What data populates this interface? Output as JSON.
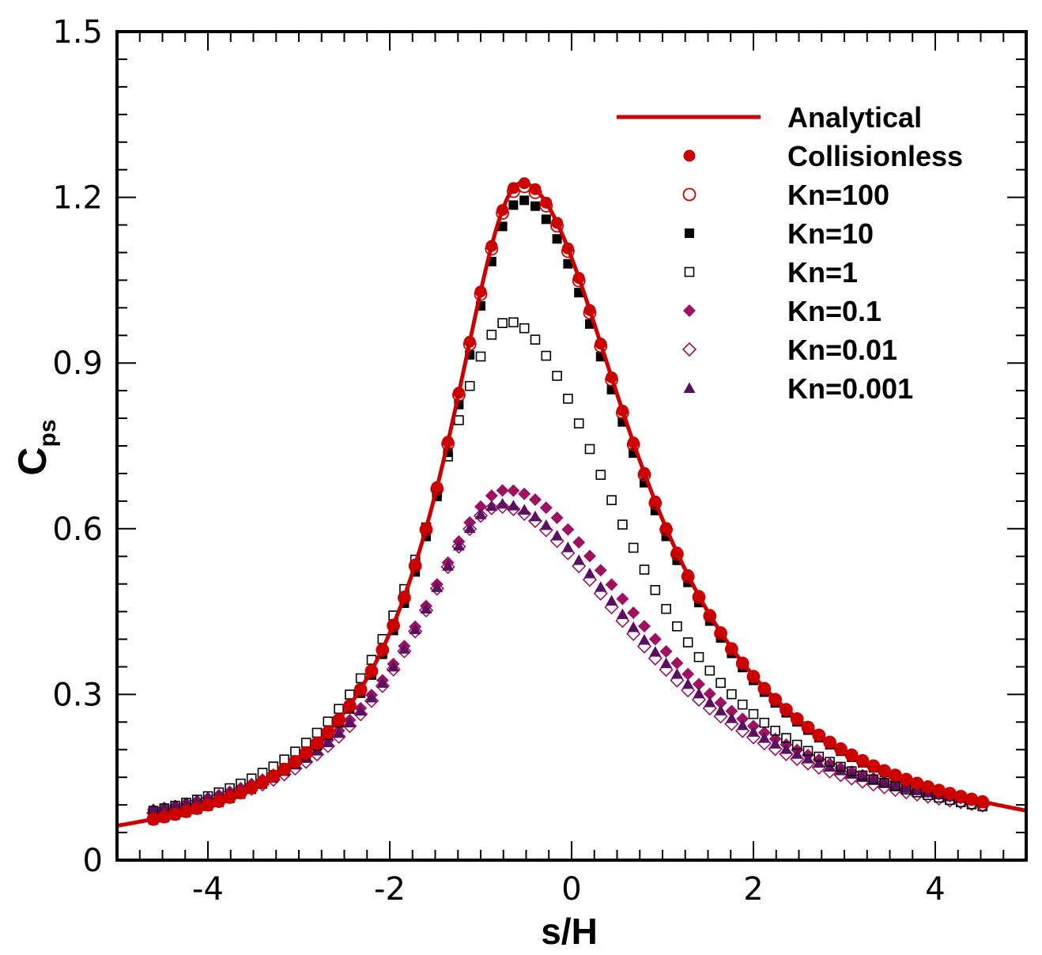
{
  "chart_data": {
    "type": "scatter",
    "title": "",
    "xlabel": "s/H",
    "ylabel": {
      "main": "C",
      "sub": "ps"
    },
    "xlim": [
      -5,
      5
    ],
    "ylim": [
      0,
      1.5
    ],
    "xticks": [
      -4,
      -2,
      0,
      2,
      4
    ],
    "yticks": [
      0,
      0.3,
      0.6,
      0.9,
      1.2,
      1.5
    ],
    "xtick_labels": [
      "-4",
      "-2",
      "0",
      "2",
      "4"
    ],
    "ytick_labels": [
      "0",
      "0.3",
      "0.6",
      "0.9",
      "1.2",
      "1.5"
    ],
    "grid": false,
    "legend_position": "top-right",
    "colors": {
      "red": "#cc0000",
      "black": "#000000",
      "magenta": "#a01060",
      "purple": "#5a1060"
    },
    "series": [
      {
        "name": "Analytical",
        "style": "line",
        "color": "#cc0000",
        "params": {
          "amp": 1.226,
          "center": -0.55,
          "wl": 1.03,
          "wr": 1.56,
          "base": 0
        }
      },
      {
        "name": "Collisionless",
        "marker": "circle-filled",
        "color": "#cc0000",
        "params": {
          "amp": 1.226,
          "center": -0.55,
          "wl": 1.03,
          "wr": 1.56,
          "base": 0
        }
      },
      {
        "name": "Kn=100",
        "marker": "circle-open",
        "color": "#cc0000",
        "params": {
          "amp": 1.22,
          "center": -0.55,
          "wl": 1.03,
          "wr": 1.56,
          "base": 0
        }
      },
      {
        "name": "Kn=10",
        "marker": "square-filled",
        "color": "#000000",
        "params": {
          "amp": 1.195,
          "center": -0.55,
          "wl": 1.03,
          "wr": 1.56,
          "base": 0
        }
      },
      {
        "name": "Kn=1",
        "marker": "square-open",
        "color": "#000000",
        "params": {
          "amp": 0.96,
          "center": -0.7,
          "wl": 1.13,
          "wr": 1.6,
          "base": 0.015
        }
      },
      {
        "name": "Kn=0.1",
        "marker": "diamond-filled",
        "color": "#a01060",
        "params": {
          "amp": 0.64,
          "center": -0.72,
          "wl": 1.26,
          "wr": 1.92,
          "base": 0.03
        }
      },
      {
        "name": "Kn=0.01",
        "marker": "diamond-open",
        "color": "#a01060",
        "params": {
          "amp": 0.61,
          "center": -0.8,
          "wl": 1.2,
          "wr": 1.9,
          "base": 0.03
        }
      },
      {
        "name": "Kn=0.001",
        "marker": "triangle-filled",
        "color": "#5a1060",
        "params": {
          "amp": 0.61,
          "center": -0.78,
          "wl": 1.22,
          "wr": 1.92,
          "base": 0.035
        }
      }
    ],
    "sample_x": {
      "start": -4.6,
      "end": 4.6,
      "step": 0.12
    }
  }
}
